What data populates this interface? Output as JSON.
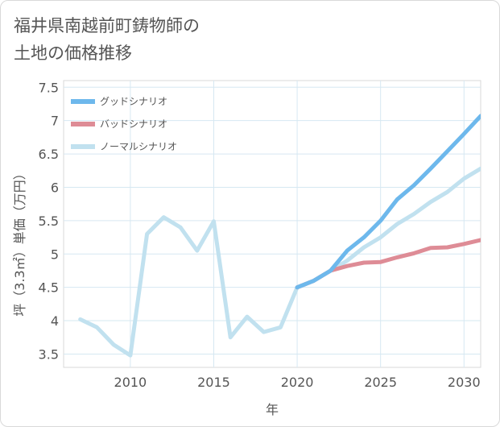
{
  "page": {
    "title": "福井県南越前町鋳物師の\n土地の価格推移"
  },
  "chart_data": {
    "type": "line",
    "title": "福井県南越前町鋳物師の土地の価格推移",
    "xlabel": "年",
    "ylabel": "坪（3.3㎡）単価（万円）",
    "xlim": [
      2006,
      2031
    ],
    "ylim": [
      3.3,
      7.6
    ],
    "xticks": [
      2010,
      2015,
      2020,
      2025,
      2030
    ],
    "yticks": [
      3.5,
      4,
      4.5,
      5,
      5.5,
      6,
      6.5,
      7,
      7.5
    ],
    "ytick_labels": [
      "3.5",
      "4",
      "4.5",
      "5",
      "5.5",
      "6",
      "6.5",
      "7",
      "7.5"
    ],
    "grid": true,
    "legend_position": "top-left",
    "series": [
      {
        "name": "グッドシナリオ",
        "color": "#6db8ec",
        "x": [
          2020,
          2021,
          2022,
          2023,
          2024,
          2025,
          2026,
          2027,
          2028,
          2029,
          2030,
          2031
        ],
        "values": [
          4.5,
          4.6,
          4.75,
          5.05,
          5.25,
          5.5,
          5.82,
          6.03,
          6.28,
          6.54,
          6.8,
          7.07
        ]
      },
      {
        "name": "バッドシナリオ",
        "color": "#de8c96",
        "x": [
          2020,
          2021,
          2022,
          2023,
          2024,
          2025,
          2026,
          2027,
          2028,
          2029,
          2030,
          2031
        ],
        "values": [
          4.5,
          4.6,
          4.75,
          4.82,
          4.87,
          4.88,
          4.95,
          5.01,
          5.09,
          5.1,
          5.15,
          5.21
        ]
      },
      {
        "name": "ノーマルシナリオ",
        "color": "#c1e1ef",
        "x": [
          2007,
          2008,
          2009,
          2010,
          2011,
          2012,
          2013,
          2014,
          2015,
          2016,
          2017,
          2018,
          2019,
          2020,
          2021,
          2022,
          2023,
          2024,
          2025,
          2026,
          2027,
          2028,
          2029,
          2030,
          2031
        ],
        "values": [
          4.02,
          3.9,
          3.64,
          3.48,
          5.3,
          5.55,
          5.4,
          5.05,
          5.49,
          3.75,
          4.06,
          3.83,
          3.9,
          4.5,
          4.6,
          4.75,
          4.9,
          5.1,
          5.25,
          5.45,
          5.6,
          5.78,
          5.93,
          6.13,
          6.28
        ]
      }
    ]
  }
}
